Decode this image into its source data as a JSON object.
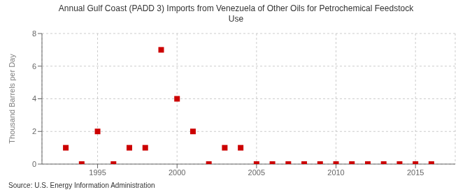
{
  "chart_data": {
    "type": "scatter",
    "title": "Annual Gulf Coast (PADD 3) Imports from Venezuela of Other Oils for Petrochemical Feedstock\nUse",
    "ylabel": "Thousand Barrels per Day",
    "source": "Source: U.S. Energy Information Administration",
    "x": [
      1993,
      1994,
      1995,
      1996,
      1997,
      1998,
      1999,
      2000,
      2001,
      2002,
      2003,
      2004,
      2005,
      2006,
      2007,
      2008,
      2009,
      2010,
      2011,
      2012,
      2013,
      2014,
      2015,
      2016
    ],
    "values": [
      1,
      0,
      2,
      0,
      1,
      1,
      7,
      4,
      2,
      0,
      1,
      1,
      0,
      0,
      0,
      0,
      0,
      0,
      0,
      0,
      0,
      0,
      0,
      0
    ],
    "color": "#cc0000",
    "marker": "square",
    "xlim": [
      1991.5,
      2017.5
    ],
    "xticks": [
      1995,
      2000,
      2005,
      2010,
      2015
    ],
    "ylim": [
      0,
      8
    ],
    "yticks": [
      0,
      2,
      4,
      6,
      8
    ],
    "grid": true
  }
}
